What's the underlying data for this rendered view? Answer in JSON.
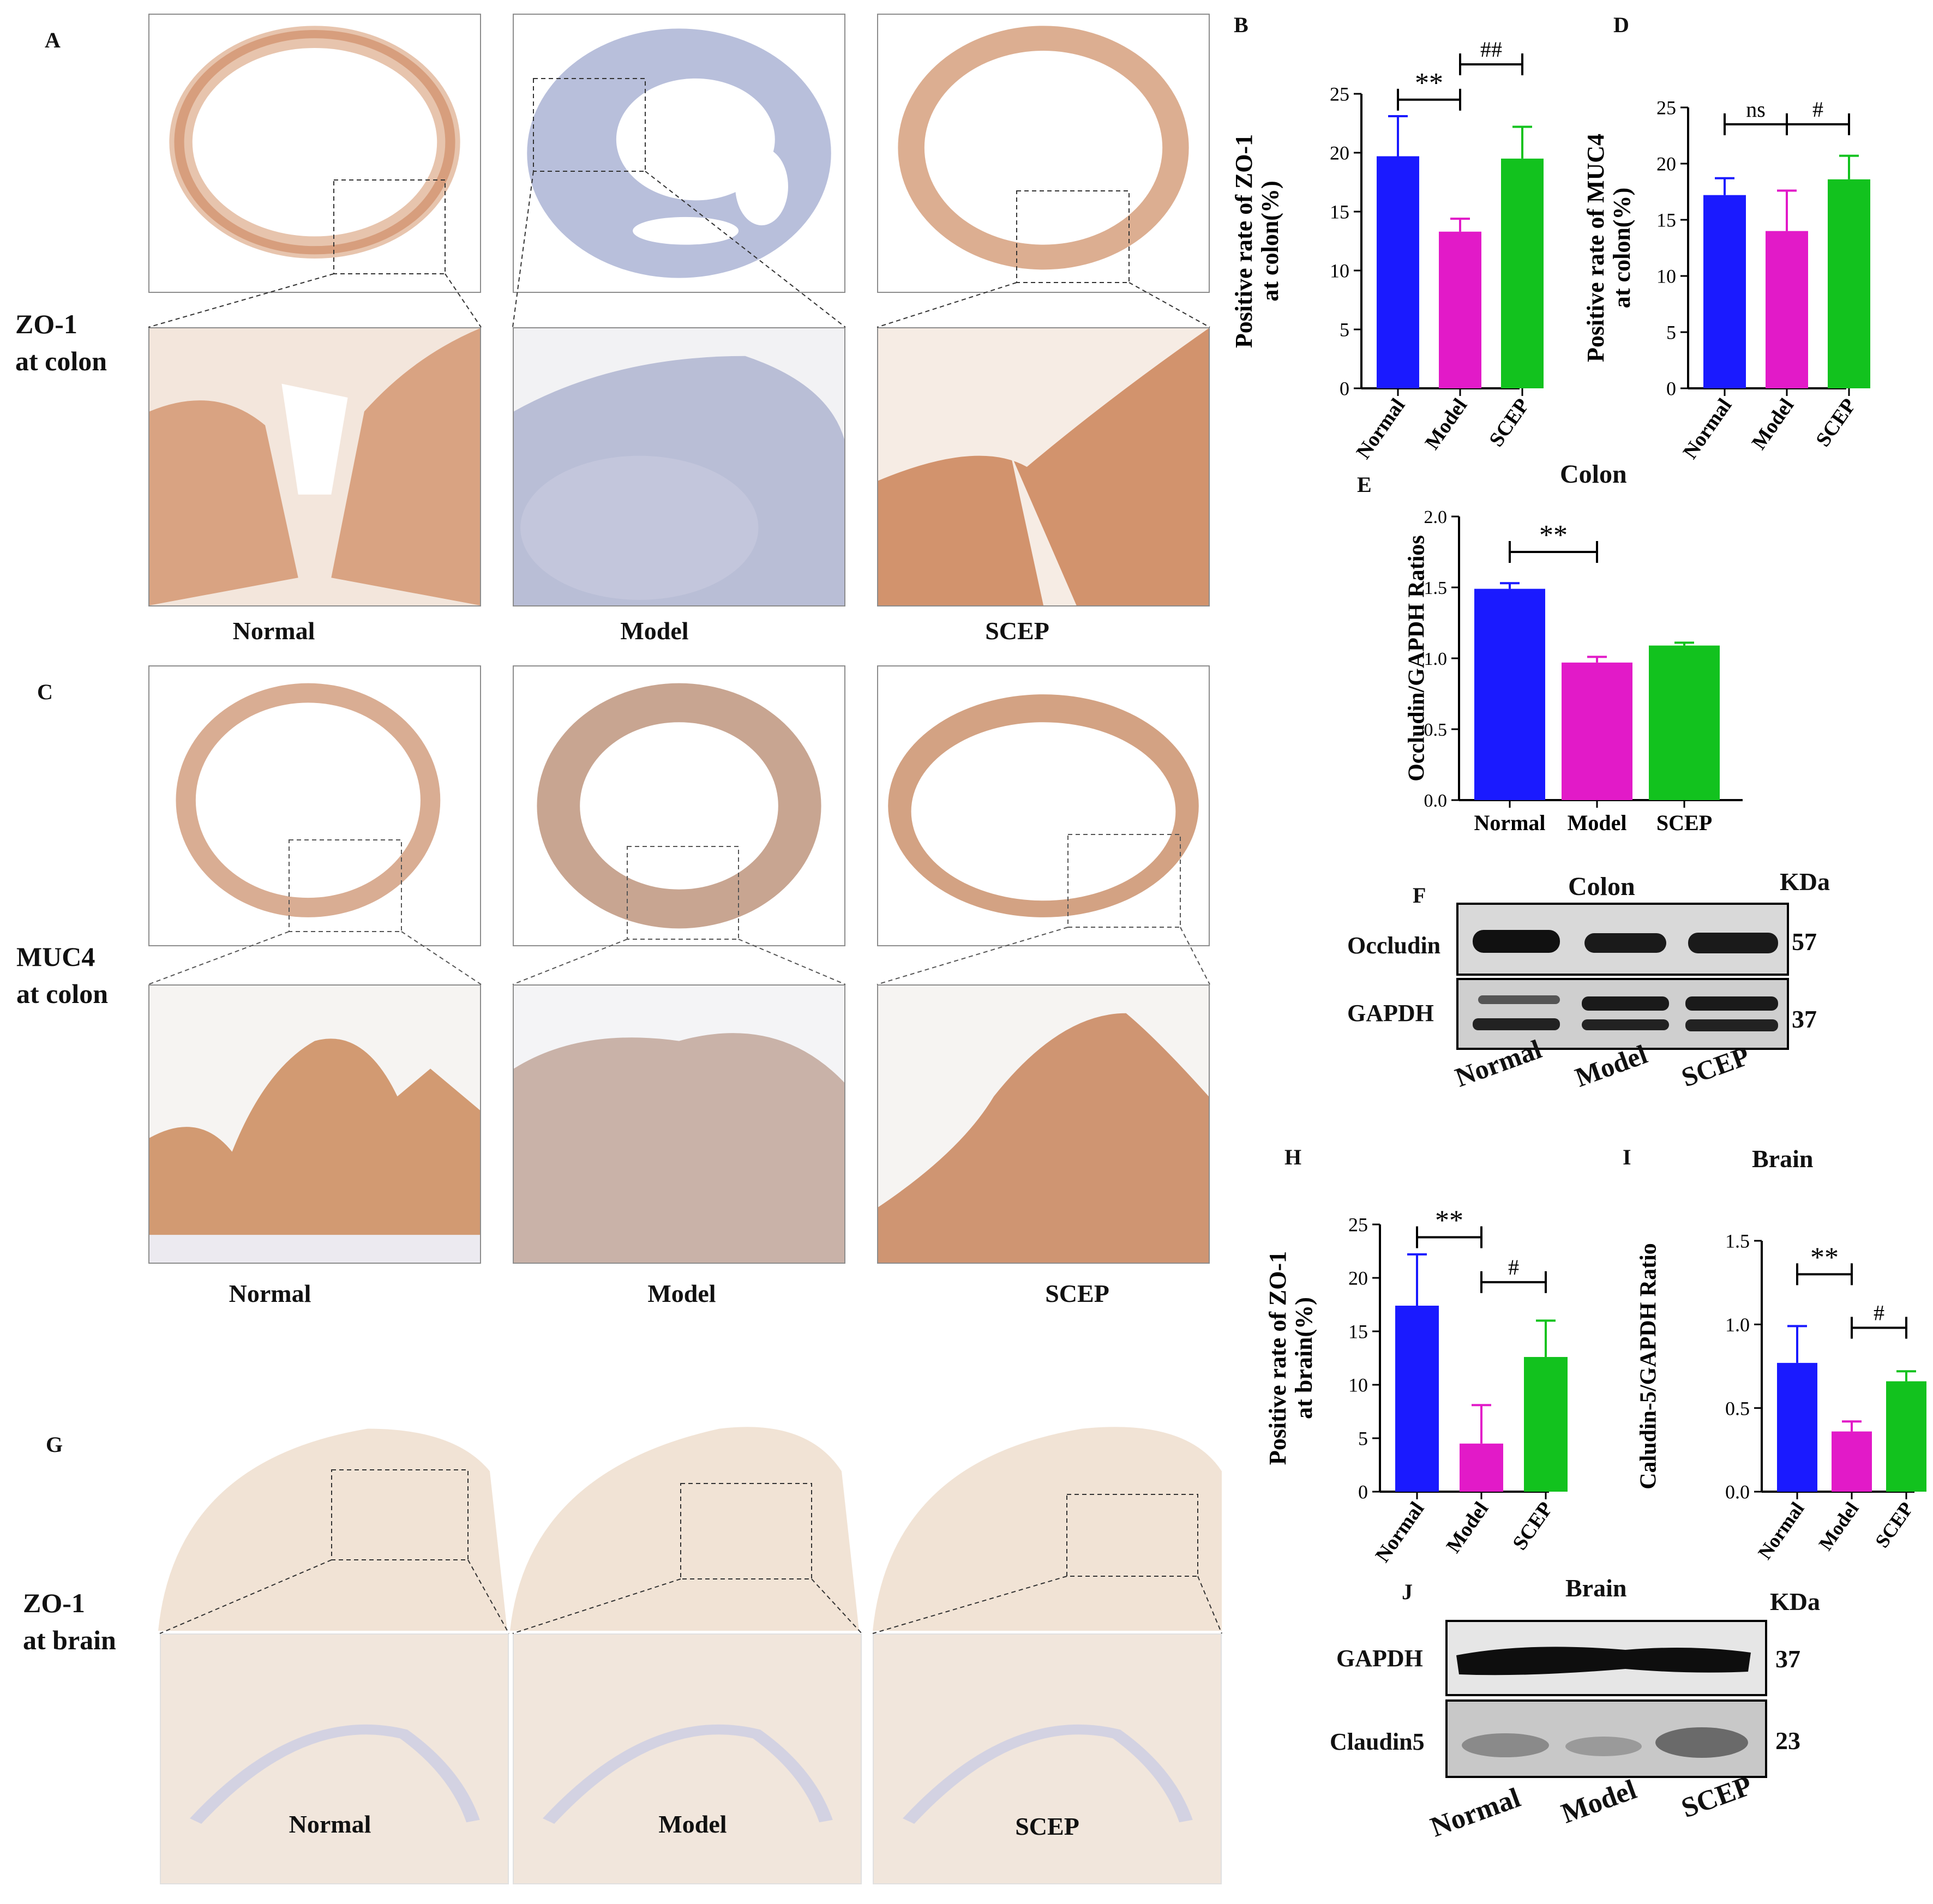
{
  "panels": {
    "A": "A",
    "B": "B",
    "C": "C",
    "D": "D",
    "E": "E",
    "F": "F",
    "G": "G",
    "H": "H",
    "I": "I",
    "J": "J"
  },
  "groups": [
    "Normal",
    "Model",
    "SCEP"
  ],
  "row_labels": {
    "zo1_colon": [
      "ZO-1",
      "at colon"
    ],
    "muc4_colon": [
      "MUC4",
      "at colon"
    ],
    "zo1_brain": [
      "ZO-1",
      "at brain"
    ]
  },
  "colors": {
    "normal": "#1a1aff",
    "model": "#e21ac8",
    "scep": "#12c21e",
    "zo1_stain": "#d9a98a",
    "model_stain": "#a9b0d0",
    "brain_stain": "#efe2d6"
  },
  "colon_title": "Colon",
  "brain_title": "Brain",
  "blot_F": {
    "title": "Colon",
    "unit": "KDa",
    "bands": [
      {
        "label": "Occludin",
        "kda": "57"
      },
      {
        "label": "GAPDH",
        "kda": "37"
      }
    ],
    "lanes": [
      "Normal",
      "Model",
      "SCEP"
    ]
  },
  "blot_J": {
    "title": "Brain",
    "unit": "KDa",
    "bands": [
      {
        "label": "GAPDH",
        "kda": "37"
      },
      {
        "label": "Claudin5",
        "kda": "23"
      }
    ],
    "lanes": [
      "Normal",
      "Model",
      "SCEP"
    ]
  },
  "chart_data": [
    {
      "id": "B",
      "type": "bar",
      "ylabel": [
        "Positive rate of ZO-1",
        "at colon(%)"
      ],
      "categories": [
        "Normal",
        "Model",
        "SCEP"
      ],
      "values": [
        19.7,
        13.3,
        19.5
      ],
      "errors": [
        3.4,
        1.1,
        2.7
      ],
      "ylim": [
        0,
        25
      ],
      "yticks": [
        "0",
        "5",
        "10",
        "15",
        "20",
        "25"
      ],
      "tick_values": [
        0,
        5,
        10,
        15,
        20,
        25
      ],
      "rotated_labels": true,
      "sig": [
        {
          "from": 0,
          "to": 1,
          "label": "**",
          "y": 24.5
        },
        {
          "from": 1,
          "to": 2,
          "label": "##",
          "y": 27.5
        }
      ]
    },
    {
      "id": "D",
      "type": "bar",
      "ylabel": [
        "Positive rate of MUC4",
        "at colon(%)"
      ],
      "categories": [
        "Normal",
        "Model",
        "SCEP"
      ],
      "values": [
        17.2,
        14.0,
        18.6
      ],
      "errors": [
        1.5,
        3.6,
        2.1
      ],
      "ylim": [
        0,
        25
      ],
      "yticks": [
        "0",
        "5",
        "10",
        "15",
        "20",
        "25"
      ],
      "tick_values": [
        0,
        5,
        10,
        15,
        20,
        25
      ],
      "rotated_labels": true,
      "sig": [
        {
          "from": 0,
          "to": 1,
          "label": "ns",
          "y": 23.5
        },
        {
          "from": 1,
          "to": 2,
          "label": "#",
          "y": 23.5
        }
      ]
    },
    {
      "id": "E",
      "type": "bar",
      "ylabel": [
        "Occludin/GAPDH Ratios"
      ],
      "categories": [
        "Normal",
        "Model",
        "SCEP"
      ],
      "values": [
        1.49,
        0.97,
        1.09
      ],
      "errors": [
        0.04,
        0.04,
        0.02
      ],
      "ylim": [
        0,
        2.0
      ],
      "yticks": [
        "0.0",
        "0.5",
        "1.0",
        "1.5",
        "2.0"
      ],
      "tick_values": [
        0,
        0.5,
        1.0,
        1.5,
        2.0
      ],
      "rotated_labels": false,
      "sig": [
        {
          "from": 0,
          "to": 1,
          "label": "**",
          "y": 1.75
        }
      ]
    },
    {
      "id": "H",
      "type": "bar",
      "ylabel": [
        "Positive rate of ZO-1",
        "at brain(%)"
      ],
      "categories": [
        "Normal",
        "Model",
        "SCEP"
      ],
      "values": [
        17.4,
        4.5,
        12.6
      ],
      "errors": [
        4.8,
        3.6,
        3.4
      ],
      "ylim": [
        0,
        25
      ],
      "yticks": [
        "0",
        "5",
        "10",
        "15",
        "20",
        "25"
      ],
      "tick_values": [
        0,
        5,
        10,
        15,
        20,
        25
      ],
      "rotated_labels": true,
      "sig": [
        {
          "from": 0,
          "to": 1,
          "label": "**",
          "y": 23.8
        },
        {
          "from": 1,
          "to": 2,
          "label": "#",
          "y": 19.6
        }
      ]
    },
    {
      "id": "I",
      "type": "bar",
      "title": "Brain",
      "ylabel": [
        "Caludin-5/GAPDH Ratio"
      ],
      "categories": [
        "Normal",
        "Model",
        "SCEP"
      ],
      "values": [
        0.77,
        0.36,
        0.66
      ],
      "errors": [
        0.22,
        0.06,
        0.06
      ],
      "ylim": [
        0,
        1.5
      ],
      "yticks": [
        "0.0",
        "0.5",
        "1.0",
        "1.5"
      ],
      "tick_values": [
        0,
        0.5,
        1.0,
        1.5
      ],
      "rotated_labels": true,
      "sig": [
        {
          "from": 0,
          "to": 1,
          "label": "**",
          "y": 1.3
        },
        {
          "from": 1,
          "to": 2,
          "label": "#",
          "y": 0.98
        }
      ]
    }
  ]
}
